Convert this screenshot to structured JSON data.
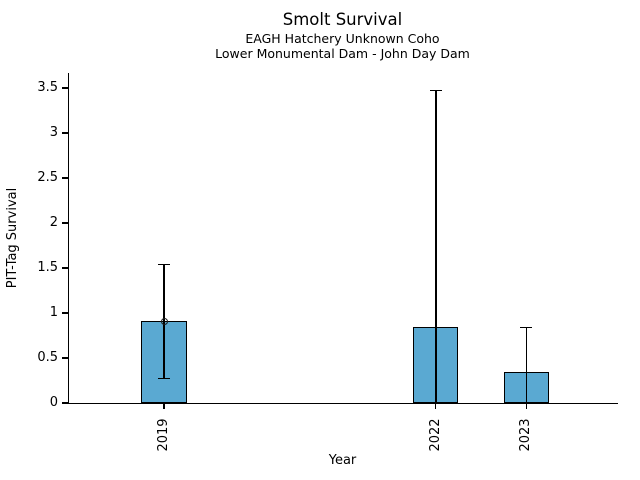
{
  "chart_data": {
    "type": "bar",
    "title": "Smolt Survival",
    "subtitle": [
      "EAGH Hatchery Unknown Coho",
      "Lower Monumental Dam - John Day Dam"
    ],
    "xlabel": "Year",
    "ylabel": "PIT-Tag Survival",
    "categories": [
      2019,
      2022,
      2023
    ],
    "values": [
      0.91,
      0.84,
      0.34
    ],
    "error_high": [
      1.54,
      3.47,
      0.84
    ],
    "error_low": [
      0.27,
      0,
      0
    ],
    "marker_points": [
      {
        "x": 2019,
        "y": 0.91,
        "style": "open-circle"
      }
    ],
    "yticks": [
      0,
      0.5,
      1,
      1.5,
      2,
      2.5,
      3,
      3.5
    ],
    "ytick_labels": [
      "0",
      "0.5",
      "1",
      "1.5",
      "2",
      "2.5",
      "3",
      "3.5"
    ],
    "xticks": [
      2019,
      2022,
      2023
    ],
    "xtick_labels": [
      "2019",
      "2022",
      "2023"
    ],
    "layout": {
      "xlim": [
        2017.94,
        2024.0
      ],
      "ylim": [
        0,
        3.667
      ],
      "bar_width_years": 0.5,
      "grid": false,
      "legend": false
    },
    "colors": {
      "bar_fill": "#5AA9D2",
      "bar_edge": "#000000",
      "error_bar": "#000000",
      "text": "#000000",
      "background": "#ffffff"
    }
  }
}
